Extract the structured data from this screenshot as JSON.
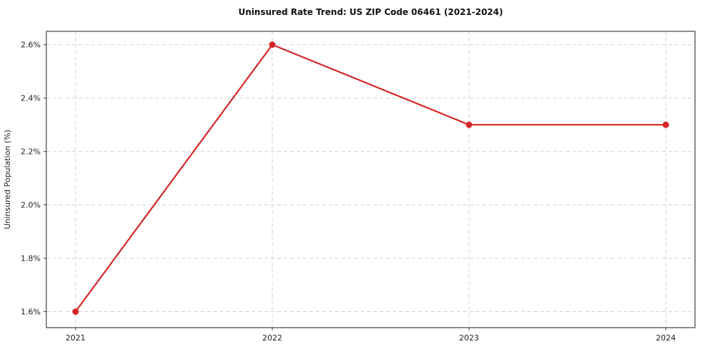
{
  "chart_data": {
    "type": "line",
    "title": "Uninsured Rate Trend: US ZIP Code 06461 (2021-2024)",
    "xlabel": "",
    "ylabel": "Uninsured Population (%)",
    "categories": [
      "2021",
      "2022",
      "2023",
      "2024"
    ],
    "series": [
      {
        "name": "Uninsured Population (%)",
        "values": [
          1.6,
          2.6,
          2.3,
          2.3
        ]
      }
    ],
    "ylim": [
      1.54,
      2.65
    ],
    "yticks": [
      1.6,
      1.8,
      2.0,
      2.2,
      2.4,
      2.6
    ],
    "ytick_suffix": "%",
    "grid": true,
    "legend": "none",
    "colors": {
      "line": "#d62728",
      "marker": "#d62728",
      "grid": "#d0d0d0",
      "axis": "#444444",
      "background": "#ffffff"
    }
  }
}
